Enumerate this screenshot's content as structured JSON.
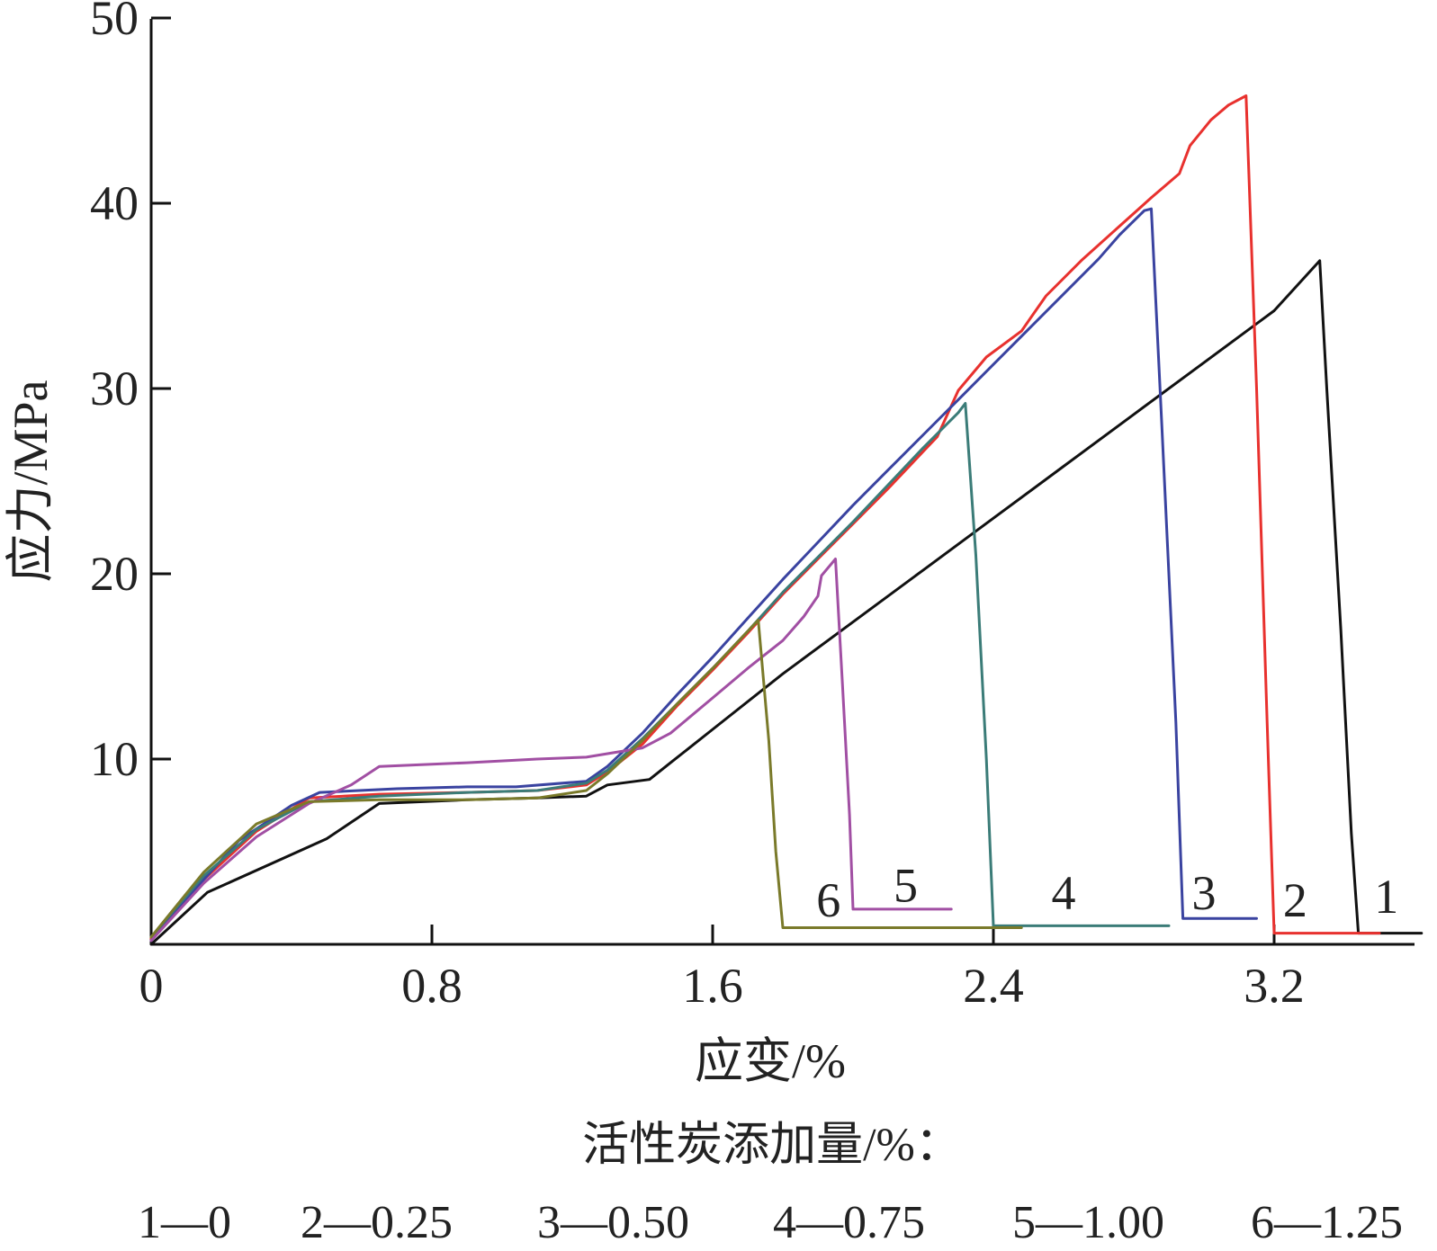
{
  "chart_data": {
    "type": "line",
    "title": "",
    "xlabel": "应变/%",
    "ylabel": "应力/MPa",
    "xlim": [
      0,
      3.6
    ],
    "ylim": [
      0,
      50
    ],
    "xticks": [
      0,
      0.8,
      1.6,
      2.4,
      3.2
    ],
    "xtick_labels": [
      "0",
      "0.8",
      "1.6",
      "2.4",
      "3.2"
    ],
    "yticks": [
      10,
      20,
      30,
      40,
      50
    ],
    "ytick_labels": [
      "10",
      "20",
      "30",
      "40",
      "50"
    ],
    "grid": false,
    "legend_title": "活性炭添加量/%：",
    "legend_items": [
      "1—0",
      "2—0.25",
      "3—0.50",
      "4—0.75",
      "5—1.00",
      "6—1.25"
    ],
    "legend_placement": "bottom",
    "series": [
      {
        "label": "1",
        "color": "#111111",
        "label_pos": [
          3.52,
          1.7
        ],
        "points": [
          [
            0,
            0
          ],
          [
            0.16,
            2.8
          ],
          [
            0.5,
            5.7
          ],
          [
            0.65,
            7.6
          ],
          [
            0.9,
            7.8
          ],
          [
            1.1,
            7.9
          ],
          [
            1.24,
            8.0
          ],
          [
            1.3,
            8.6
          ],
          [
            1.42,
            8.9
          ],
          [
            1.48,
            9.8
          ],
          [
            1.6,
            11.6
          ],
          [
            1.8,
            14.6
          ],
          [
            2.0,
            17.4
          ],
          [
            2.2,
            20.2
          ],
          [
            2.4,
            23.0
          ],
          [
            2.6,
            25.8
          ],
          [
            2.8,
            28.6
          ],
          [
            3.0,
            31.4
          ],
          [
            3.2,
            34.2
          ],
          [
            3.33,
            36.9
          ],
          [
            3.35,
            30.0
          ],
          [
            3.39,
            17.0
          ],
          [
            3.42,
            6.0
          ],
          [
            3.44,
            0.6
          ],
          [
            3.62,
            0.6
          ]
        ]
      },
      {
        "label": "2",
        "color": "#e8312e",
        "label_pos": [
          3.26,
          1.5
        ],
        "points": [
          [
            0,
            0.3
          ],
          [
            0.15,
            3.5
          ],
          [
            0.3,
            6.1
          ],
          [
            0.45,
            7.9
          ],
          [
            0.65,
            8.1
          ],
          [
            0.9,
            8.2
          ],
          [
            1.1,
            8.3
          ],
          [
            1.24,
            8.6
          ],
          [
            1.3,
            9.3
          ],
          [
            1.4,
            10.8
          ],
          [
            1.5,
            12.9
          ],
          [
            1.6,
            14.8
          ],
          [
            1.7,
            16.8
          ],
          [
            1.8,
            18.9
          ],
          [
            1.9,
            20.8
          ],
          [
            2.0,
            22.7
          ],
          [
            2.1,
            24.6
          ],
          [
            2.2,
            26.6
          ],
          [
            2.24,
            27.4
          ],
          [
            2.3,
            29.9
          ],
          [
            2.38,
            31.7
          ],
          [
            2.48,
            33.1
          ],
          [
            2.55,
            35.0
          ],
          [
            2.65,
            36.9
          ],
          [
            2.75,
            38.6
          ],
          [
            2.85,
            40.3
          ],
          [
            2.93,
            41.6
          ],
          [
            2.96,
            43.1
          ],
          [
            3.02,
            44.5
          ],
          [
            3.07,
            45.3
          ],
          [
            3.12,
            45.8
          ],
          [
            3.15,
            30.0
          ],
          [
            3.18,
            12.0
          ],
          [
            3.2,
            0.6
          ],
          [
            3.5,
            0.6
          ]
        ]
      },
      {
        "label": "3",
        "color": "#3a43a0",
        "label_pos": [
          3.0,
          1.9
        ],
        "points": [
          [
            0,
            0.2
          ],
          [
            0.15,
            3.5
          ],
          [
            0.25,
            5.6
          ],
          [
            0.4,
            7.5
          ],
          [
            0.48,
            8.2
          ],
          [
            0.7,
            8.4
          ],
          [
            0.9,
            8.5
          ],
          [
            1.04,
            8.5
          ],
          [
            1.24,
            8.8
          ],
          [
            1.3,
            9.6
          ],
          [
            1.4,
            11.4
          ],
          [
            1.5,
            13.5
          ],
          [
            1.6,
            15.5
          ],
          [
            1.7,
            17.6
          ],
          [
            1.8,
            19.7
          ],
          [
            1.9,
            21.7
          ],
          [
            2.0,
            23.7
          ],
          [
            2.1,
            25.6
          ],
          [
            2.2,
            27.5
          ],
          [
            2.3,
            29.4
          ],
          [
            2.4,
            31.3
          ],
          [
            2.5,
            33.2
          ],
          [
            2.6,
            35.1
          ],
          [
            2.7,
            37.0
          ],
          [
            2.76,
            38.3
          ],
          [
            2.83,
            39.6
          ],
          [
            2.85,
            39.7
          ],
          [
            2.88,
            28.0
          ],
          [
            2.92,
            12.0
          ],
          [
            2.94,
            1.4
          ],
          [
            3.15,
            1.4
          ]
        ]
      },
      {
        "label": "4",
        "color": "#3b7c78",
        "label_pos": [
          2.6,
          1.9
        ],
        "points": [
          [
            0,
            0.4
          ],
          [
            0.15,
            3.7
          ],
          [
            0.3,
            6.2
          ],
          [
            0.45,
            7.7
          ],
          [
            0.65,
            8.0
          ],
          [
            0.9,
            8.2
          ],
          [
            1.1,
            8.3
          ],
          [
            1.24,
            8.7
          ],
          [
            1.3,
            9.4
          ],
          [
            1.4,
            11.1
          ],
          [
            1.5,
            13.0
          ],
          [
            1.6,
            14.9
          ],
          [
            1.7,
            16.9
          ],
          [
            1.8,
            19.0
          ],
          [
            1.9,
            20.9
          ],
          [
            2.0,
            22.8
          ],
          [
            2.1,
            24.8
          ],
          [
            2.2,
            26.8
          ],
          [
            2.3,
            28.7
          ],
          [
            2.32,
            29.2
          ],
          [
            2.35,
            21.0
          ],
          [
            2.38,
            10.0
          ],
          [
            2.4,
            1.0
          ],
          [
            2.9,
            1.0
          ]
        ]
      },
      {
        "label": "5",
        "color": "#a14fa3",
        "label_pos": [
          2.15,
          2.3
        ],
        "points": [
          [
            0,
            0.2
          ],
          [
            0.15,
            3.3
          ],
          [
            0.3,
            5.8
          ],
          [
            0.45,
            7.6
          ],
          [
            0.57,
            8.6
          ],
          [
            0.65,
            9.6
          ],
          [
            0.9,
            9.8
          ],
          [
            1.1,
            10.0
          ],
          [
            1.24,
            10.1
          ],
          [
            1.4,
            10.6
          ],
          [
            1.48,
            11.4
          ],
          [
            1.6,
            13.3
          ],
          [
            1.7,
            14.9
          ],
          [
            1.8,
            16.4
          ],
          [
            1.86,
            17.7
          ],
          [
            1.9,
            18.8
          ],
          [
            1.91,
            19.9
          ],
          [
            1.95,
            20.8
          ],
          [
            1.97,
            14.0
          ],
          [
            1.99,
            7.0
          ],
          [
            2.0,
            1.9
          ],
          [
            2.28,
            1.9
          ]
        ]
      },
      {
        "label": "6",
        "color": "#7a7a2a",
        "label_pos": [
          1.93,
          1.5
        ],
        "points": [
          [
            0,
            0.4
          ],
          [
            0.15,
            3.9
          ],
          [
            0.3,
            6.5
          ],
          [
            0.45,
            7.7
          ],
          [
            0.65,
            7.8
          ],
          [
            0.9,
            7.8
          ],
          [
            1.1,
            7.9
          ],
          [
            1.24,
            8.3
          ],
          [
            1.3,
            9.2
          ],
          [
            1.4,
            11.0
          ],
          [
            1.5,
            13.0
          ],
          [
            1.6,
            14.9
          ],
          [
            1.7,
            16.9
          ],
          [
            1.73,
            17.5
          ],
          [
            1.76,
            11.0
          ],
          [
            1.78,
            5.0
          ],
          [
            1.8,
            0.9
          ],
          [
            2.48,
            0.9
          ]
        ]
      }
    ]
  }
}
